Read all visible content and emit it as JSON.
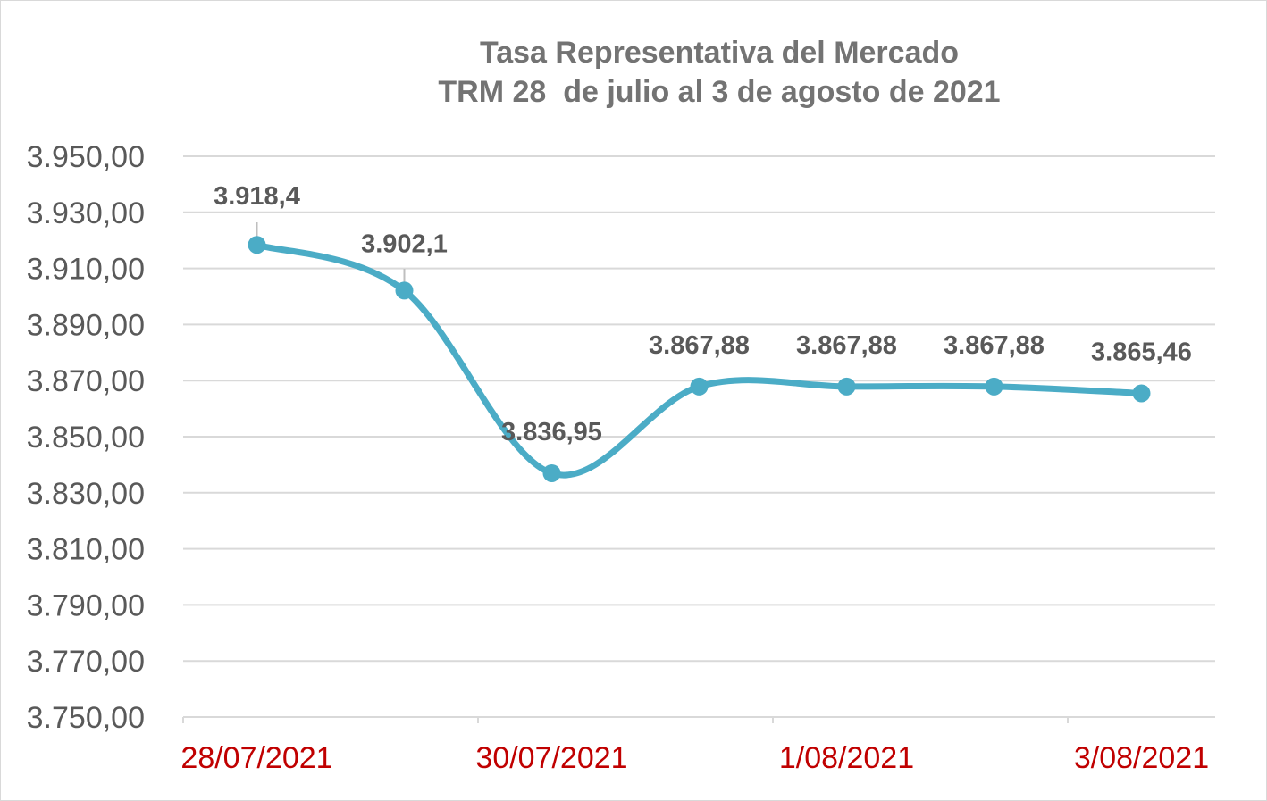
{
  "chart_data": {
    "type": "line",
    "title": "Tasa Representativa del Mercado",
    "subtitle": "TRM 28  de julio al 3 de agosto de 2021",
    "x": [
      "28/07/2021",
      "29/07/2021",
      "30/07/2021",
      "31/07/2021",
      "1/08/2021",
      "2/08/2021",
      "3/08/2021"
    ],
    "x_tick_labels": [
      "28/07/2021",
      "30/07/2021",
      "1/08/2021",
      "3/08/2021"
    ],
    "series": [
      {
        "values": [
          3918.4,
          3902.1,
          3836.95,
          3867.88,
          3867.88,
          3867.88,
          3865.46
        ],
        "data_labels": [
          "3.918,4",
          "3.902,1",
          "3.836,95",
          "3.867,88",
          "3.867,88",
          "3.867,88",
          "3.865,46"
        ],
        "color": "#4bacc6",
        "smooth": true,
        "markers": true
      }
    ],
    "y_tick_labels": [
      "3.950,00",
      "3.930,00",
      "3.910,00",
      "3.890,00",
      "3.870,00",
      "3.850,00",
      "3.830,00",
      "3.810,00",
      "3.790,00",
      "3.770,00",
      "3.750,00"
    ],
    "ylim": [
      3750,
      3950
    ],
    "ystep": 20,
    "grid": true,
    "legend": "none",
    "colors": {
      "line": "#4bacc6",
      "gridline": "#d9d9d9",
      "title": "#737373",
      "y_tick_text": "#595959",
      "x_tick_text": "#c00000",
      "data_label": "#595959",
      "leader_line": "#bfbfbf"
    }
  }
}
